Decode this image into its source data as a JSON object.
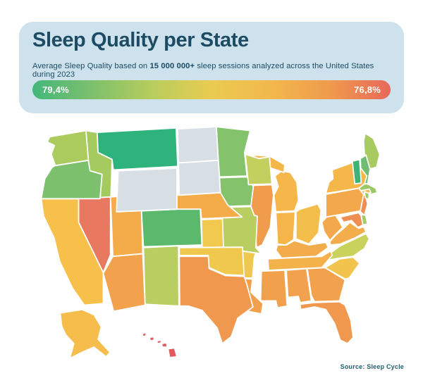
{
  "header": {
    "title": "Sleep Quality per State",
    "subtitle_prefix": "Average Sleep Quality based on ",
    "subtitle_bold": "15 000 000+",
    "subtitle_suffix": " sleep sessions analyzed across the United States during 2023",
    "background_color": "#CDE2EC",
    "text_color": "#1C4B63"
  },
  "legend": {
    "best_label": "79,4%",
    "worst_label": "76,8%",
    "gradient_colors": [
      "#43B67B",
      "#7DC06C",
      "#B7CD5D",
      "#EACB50",
      "#F2B84C",
      "#F09A4D",
      "#E7685B"
    ]
  },
  "source": "Source: Sleep Cycle",
  "source_color": "#1F5E70",
  "chart_data": {
    "type": "choropleth",
    "title": "Sleep Quality per State",
    "metric": "Average Sleep Quality",
    "region": "United States",
    "year": "2023",
    "sessions_analyzed": "15 000 000+",
    "scale": {
      "best_shown": "79,4%",
      "worst_shown": "76,8%",
      "best_color": "#43B67B",
      "worst_color": "#E7685B"
    },
    "no_data_color": "#D7DEE4",
    "legend_position": "top",
    "states": [
      {
        "abbr": "AL",
        "name": "Alabama",
        "fill": "#F2A14C"
      },
      {
        "abbr": "AK",
        "name": "Alaska",
        "fill": "#F6BC4C"
      },
      {
        "abbr": "AZ",
        "name": "Arizona",
        "fill": "#F2A14D"
      },
      {
        "abbr": "AR",
        "name": "Arkansas",
        "fill": "#EFC94F"
      },
      {
        "abbr": "CA",
        "name": "California",
        "fill": "#F6C04A"
      },
      {
        "abbr": "CO",
        "name": "Colorado",
        "fill": "#5BB96D"
      },
      {
        "abbr": "CT",
        "name": "Connecticut",
        "fill": "#8CC46D"
      },
      {
        "abbr": "DE",
        "name": "Delaware",
        "fill": "#A3CA66"
      },
      {
        "abbr": "FL",
        "name": "Florida",
        "fill": "#F0984E"
      },
      {
        "abbr": "GA",
        "name": "Georgia",
        "fill": "#F2A14C"
      },
      {
        "abbr": "HI",
        "name": "Hawaii",
        "fill": "#E25A5E"
      },
      {
        "abbr": "ID",
        "name": "Idaho",
        "fill": "#A5CA60"
      },
      {
        "abbr": "IL",
        "name": "Illinois",
        "fill": "#F19C4C"
      },
      {
        "abbr": "IN",
        "name": "Indiana",
        "fill": "#F5B54A"
      },
      {
        "abbr": "IA",
        "name": "Iowa",
        "fill": "#85C26C"
      },
      {
        "abbr": "KS",
        "name": "Kansas",
        "fill": "#F1C94E"
      },
      {
        "abbr": "KY",
        "name": "Kentucky",
        "fill": "#F3AC4B"
      },
      {
        "abbr": "LA",
        "name": "Louisiana",
        "fill": "#F1A14C"
      },
      {
        "abbr": "ME",
        "name": "Maine",
        "fill": "#A8CB61"
      },
      {
        "abbr": "MD",
        "name": "Maryland",
        "fill": "#EE8E51"
      },
      {
        "abbr": "MA",
        "name": "Massachusetts",
        "fill": "#9CC868"
      },
      {
        "abbr": "MI",
        "name": "Michigan",
        "fill": "#F5B74A"
      },
      {
        "abbr": "MN",
        "name": "Minnesota",
        "fill": "#85C26C"
      },
      {
        "abbr": "MS",
        "name": "Mississippi",
        "fill": "#F1A14C"
      },
      {
        "abbr": "MO",
        "name": "Missouri",
        "fill": "#B9CE60"
      },
      {
        "abbr": "MT",
        "name": "Montana",
        "fill": "#2FB37C"
      },
      {
        "abbr": "NE",
        "name": "Nebraska",
        "fill": "#F4AC4B"
      },
      {
        "abbr": "NV",
        "name": "Nevada",
        "fill": "#E8785F"
      },
      {
        "abbr": "NH",
        "name": "New Hampshire",
        "fill": "#6FBD72"
      },
      {
        "abbr": "NJ",
        "name": "New Jersey",
        "fill": "#EE8E51"
      },
      {
        "abbr": "NM",
        "name": "New Mexico",
        "fill": "#B9CE60"
      },
      {
        "abbr": "NY",
        "name": "New York",
        "fill": "#F5B74A"
      },
      {
        "abbr": "NC",
        "name": "North Carolina",
        "fill": "#C9D25C"
      },
      {
        "abbr": "ND",
        "name": "North Dakota",
        "fill": "#D7DEE4",
        "no_data": true
      },
      {
        "abbr": "OH",
        "name": "Ohio",
        "fill": "#F3BE4B"
      },
      {
        "abbr": "OK",
        "name": "Oklahoma",
        "fill": "#F0C84E"
      },
      {
        "abbr": "OR",
        "name": "Oregon",
        "fill": "#7DC06E"
      },
      {
        "abbr": "PA",
        "name": "Pennsylvania",
        "fill": "#F3A94B"
      },
      {
        "abbr": "RI",
        "name": "Rhode Island",
        "fill": "#9FCA67"
      },
      {
        "abbr": "SC",
        "name": "South Carolina",
        "fill": "#F2C44D"
      },
      {
        "abbr": "SD",
        "name": "South Dakota",
        "fill": "#D7DEE4",
        "no_data": true
      },
      {
        "abbr": "TN",
        "name": "Tennessee",
        "fill": "#F4B24B"
      },
      {
        "abbr": "TX",
        "name": "Texas",
        "fill": "#F0984E"
      },
      {
        "abbr": "UT",
        "name": "Utah",
        "fill": "#F4AC4B"
      },
      {
        "abbr": "VT",
        "name": "Vermont",
        "fill": "#3DB377"
      },
      {
        "abbr": "VA",
        "name": "Virginia",
        "fill": "#F3AE4B"
      },
      {
        "abbr": "WA",
        "name": "Washington",
        "fill": "#ABCB5F"
      },
      {
        "abbr": "WV",
        "name": "West Virginia",
        "fill": "#F3A94B"
      },
      {
        "abbr": "WI",
        "name": "Wisconsin",
        "fill": "#C3D05E"
      },
      {
        "abbr": "WY",
        "name": "Wyoming",
        "fill": "#D7DEE4",
        "no_data": true
      }
    ]
  }
}
